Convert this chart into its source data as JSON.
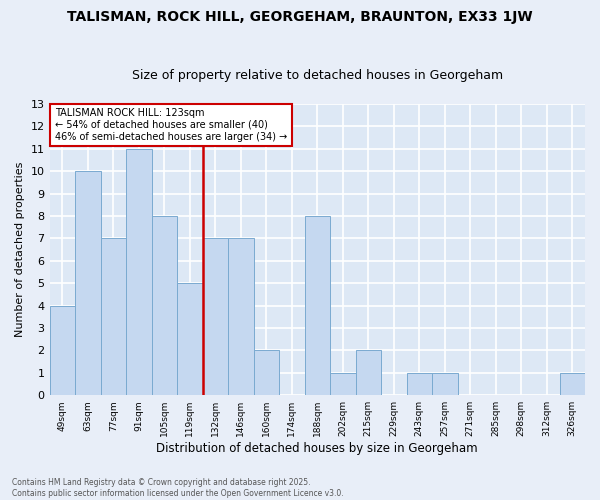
{
  "title1": "TALISMAN, ROCK HILL, GEORGEHAM, BRAUNTON, EX33 1JW",
  "title2": "Size of property relative to detached houses in Georgeham",
  "xlabel": "Distribution of detached houses by size in Georgeham",
  "ylabel": "Number of detached properties",
  "categories": [
    "49sqm",
    "63sqm",
    "77sqm",
    "91sqm",
    "105sqm",
    "119sqm",
    "132sqm",
    "146sqm",
    "160sqm",
    "174sqm",
    "188sqm",
    "202sqm",
    "215sqm",
    "229sqm",
    "243sqm",
    "257sqm",
    "271sqm",
    "285sqm",
    "298sqm",
    "312sqm",
    "326sqm"
  ],
  "values": [
    4,
    10,
    7,
    11,
    8,
    5,
    7,
    7,
    2,
    0,
    8,
    1,
    2,
    0,
    1,
    1,
    0,
    0,
    0,
    0,
    1
  ],
  "bar_color": "#c5d8f0",
  "bar_edge_color": "#7aaad0",
  "vline_color": "#cc0000",
  "annotation_title": "TALISMAN ROCK HILL: 123sqm",
  "annotation_line1": "← 54% of detached houses are smaller (40)",
  "annotation_line2": "46% of semi-detached houses are larger (34) →",
  "annotation_box_color": "#cc0000",
  "ylim": [
    0,
    13
  ],
  "yticks": [
    0,
    1,
    2,
    3,
    4,
    5,
    6,
    7,
    8,
    9,
    10,
    11,
    12,
    13
  ],
  "footer1": "Contains HM Land Registry data © Crown copyright and database right 2025.",
  "footer2": "Contains public sector information licensed under the Open Government Licence v3.0.",
  "bg_color": "#dde8f5",
  "grid_color": "#ffffff",
  "title1_fontsize": 10,
  "title2_fontsize": 9,
  "vline_position": 5.5
}
